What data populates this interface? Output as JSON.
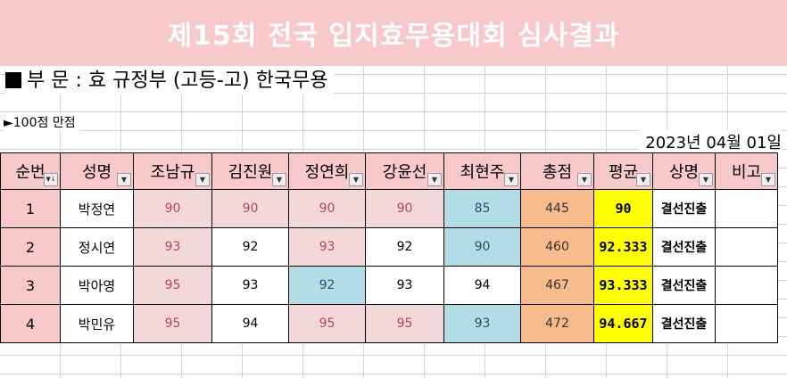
{
  "title": "제15회 전국 입지효무용대회 심사결과",
  "division": "부 문 : 효 규정부 (고등-고) 한국무용",
  "full_mark": "►100점 만점",
  "date": "2023년 04월 01일",
  "colors": {
    "header": "#f8c9cb",
    "pink_cell": "#f3d8da",
    "blue_cell": "#b2dde7",
    "total_cell": "#f7bb8c",
    "avg_cell": "#ffff00"
  },
  "headers": [
    "순번",
    "성명",
    "조남규",
    "김진원",
    "정연희",
    "강윤선",
    "최현주",
    "총점",
    "평균",
    "상명",
    "비고"
  ],
  "rows": [
    {
      "no": "1",
      "name": "박정연",
      "scores": [
        "90",
        "90",
        "90",
        "90",
        "85"
      ],
      "total": "445",
      "avg": "90",
      "award": "결선진출",
      "note": ""
    },
    {
      "no": "2",
      "name": "정시연",
      "scores": [
        "93",
        "92",
        "93",
        "92",
        "90"
      ],
      "total": "460",
      "avg": "92.333",
      "award": "결선진출",
      "note": ""
    },
    {
      "no": "3",
      "name": "박아영",
      "scores": [
        "95",
        "93",
        "92",
        "93",
        "94"
      ],
      "total": "467",
      "avg": "93.333",
      "award": "결선진출",
      "note": ""
    },
    {
      "no": "4",
      "name": "박민유",
      "scores": [
        "95",
        "94",
        "95",
        "95",
        "93"
      ],
      "total": "472",
      "avg": "94.667",
      "award": "결선진출",
      "note": ""
    }
  ]
}
